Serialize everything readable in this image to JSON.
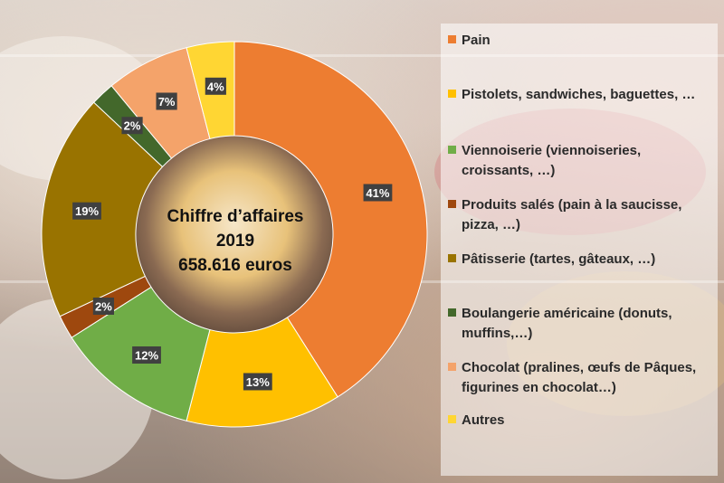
{
  "chart_data": {
    "type": "pie",
    "variant": "donut",
    "center_label": [
      "Chiffre d’affaires",
      "2019",
      "658.616 euros"
    ],
    "slices": [
      {
        "label": "Pain",
        "value": 41,
        "data_label": "41%",
        "color": "#ED7D31"
      },
      {
        "label": "Pistolets, sandwiches, baguettes, …",
        "value": 13,
        "data_label": "13%",
        "color": "#FFC000"
      },
      {
        "label": "Viennoiserie (viennoiseries, croissants, …)",
        "value": 12,
        "data_label": "12%",
        "color": "#70AD47"
      },
      {
        "label": "Produits salés (pain à la saucisse, pizza, …)",
        "value": 2,
        "data_label": "2%",
        "color": "#9E480E"
      },
      {
        "label": "Pâtisserie (tartes, gâteaux, …)",
        "value": 19,
        "data_label": "19%",
        "color": "#997300"
      },
      {
        "label": "Boulangerie américaine (donuts, muffins,…)",
        "value": 2,
        "data_label": "2%",
        "color": "#43682B"
      },
      {
        "label": "Chocolat (pralines, œufs de Pâques, figurines en chocolat…)",
        "value": 7,
        "data_label": "7%",
        "color": "#F4A36A"
      },
      {
        "label": "Autres",
        "value": 4,
        "data_label": "4%",
        "color": "#FFD633"
      }
    ],
    "legend_position": "right"
  }
}
